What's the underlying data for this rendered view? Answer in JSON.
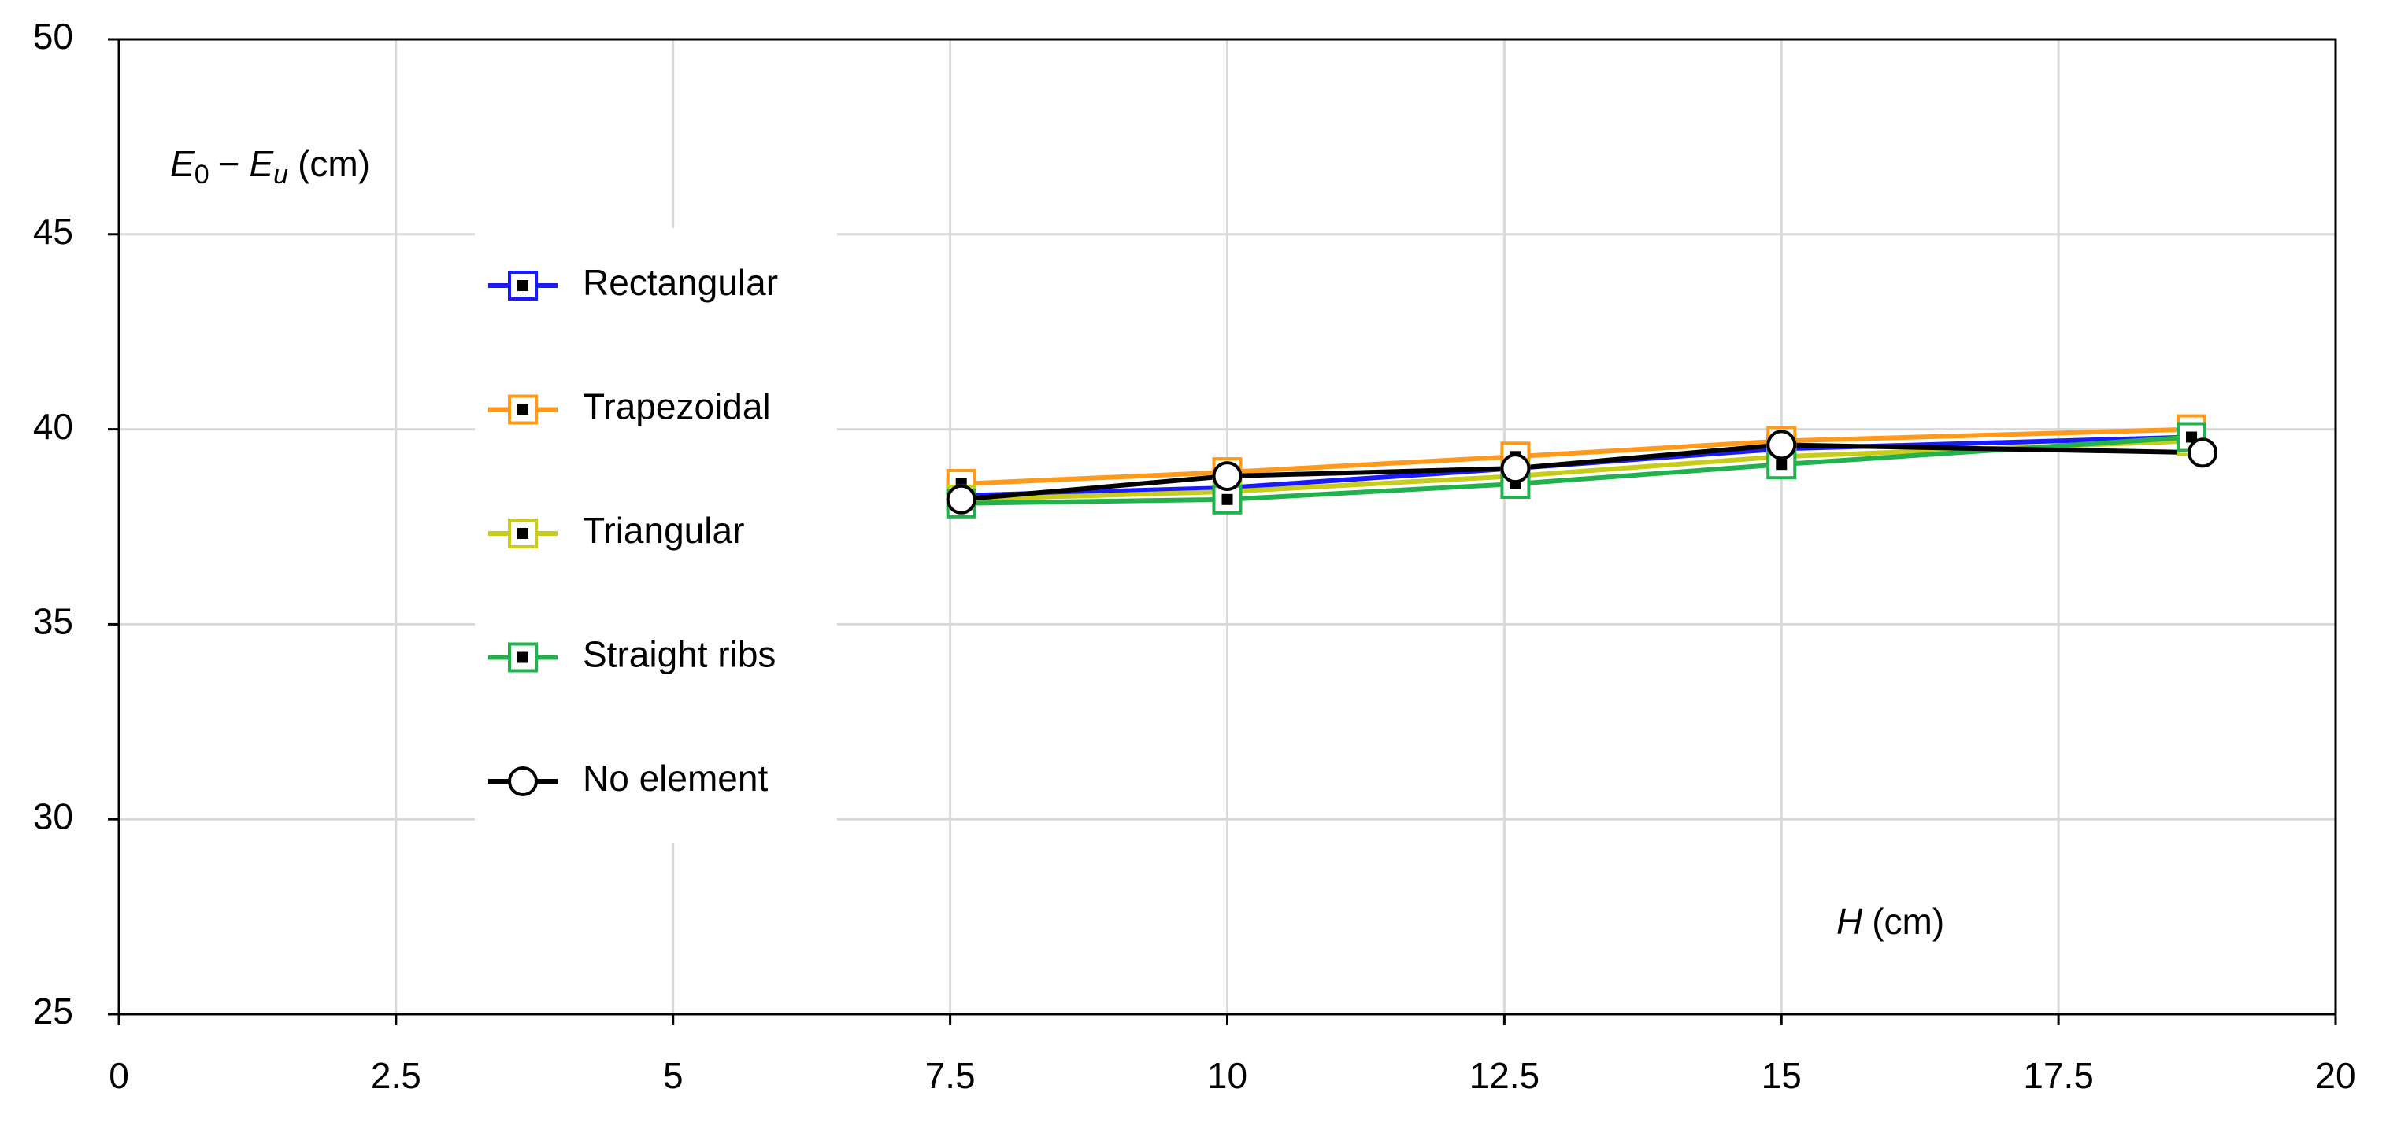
{
  "chart_data": {
    "type": "line",
    "x_label_parts": [
      "H",
      "(cm)"
    ],
    "y_label_parts": [
      "E",
      "0",
      "−",
      "E",
      "u",
      "(cm)"
    ],
    "xlim": [
      0,
      20
    ],
    "xticks": [
      0,
      2.5,
      5,
      7.5,
      10,
      12.5,
      15,
      17.5,
      20
    ],
    "ylim": [
      25,
      50
    ],
    "yticks": [
      25,
      30,
      35,
      40,
      45,
      50
    ],
    "grid": true,
    "legend": "left",
    "series": [
      {
        "name": "Rectangular",
        "color": "#1a1aff",
        "marker": "square",
        "x": [
          7.6,
          10,
          12.6,
          15,
          18.7
        ],
        "values": [
          38.3,
          38.5,
          39.0,
          39.5,
          39.8
        ]
      },
      {
        "name": "Trapezoidal",
        "color": "#ff9a1a",
        "marker": "square",
        "x": [
          7.6,
          10,
          12.6,
          15,
          18.7
        ],
        "values": [
          38.6,
          38.9,
          39.3,
          39.7,
          40.0
        ]
      },
      {
        "name": "Triangular",
        "color": "#c8cc1a",
        "marker": "square",
        "x": [
          7.6,
          10,
          12.6,
          15,
          18.7
        ],
        "values": [
          38.2,
          38.4,
          38.8,
          39.3,
          39.7
        ]
      },
      {
        "name": "Straight ribs",
        "color": "#22b14c",
        "marker": "square",
        "x": [
          7.6,
          10,
          12.6,
          15,
          18.7
        ],
        "values": [
          38.1,
          38.2,
          38.6,
          39.1,
          39.8
        ]
      },
      {
        "name": "No element",
        "color": "#000000",
        "marker": "circle",
        "x": [
          7.6,
          10,
          12.6,
          15,
          18.8
        ],
        "values": [
          38.2,
          38.8,
          39.0,
          39.6,
          39.4
        ]
      }
    ]
  }
}
